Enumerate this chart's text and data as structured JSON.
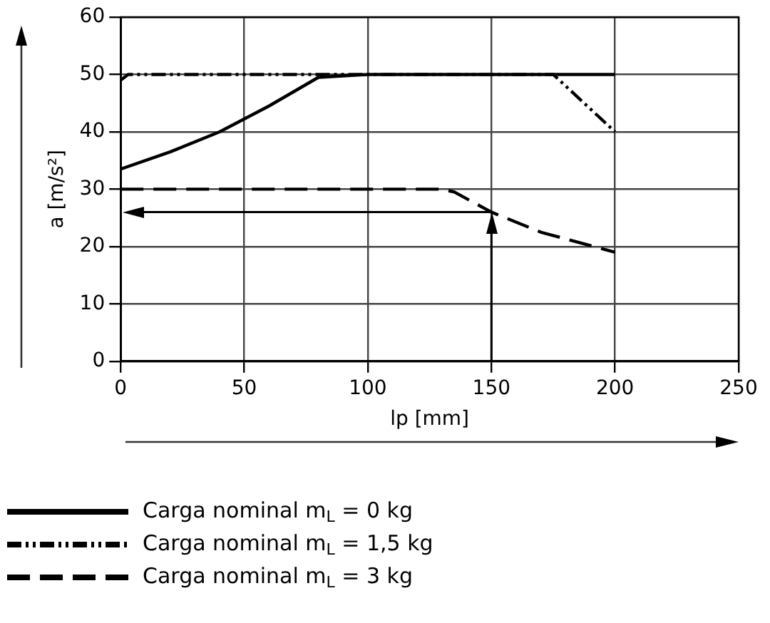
{
  "chart_data": {
    "type": "line",
    "xlabel": "lp [mm]",
    "ylabel": "a [m/s²]",
    "xlim": [
      0,
      250
    ],
    "xticks": [
      0,
      50,
      100,
      150,
      200,
      250
    ],
    "ylim": [
      0,
      60
    ],
    "yticks": [
      0,
      10,
      20,
      30,
      40,
      50,
      60
    ],
    "grid": true,
    "legend": "bottom",
    "marker": "none",
    "series": [
      {
        "name": "Carga nominal m$_{L}$ = 0 kg",
        "color": "#000000",
        "line_style": "solid",
        "x": [
          0,
          20,
          40,
          60,
          80,
          100,
          200
        ],
        "values": [
          33.5,
          36.5,
          40,
          44.5,
          49.5,
          50,
          50
        ]
      },
      {
        "name": "Carga nominal m$_{L}$ = 1,5 kg",
        "color": "#000000",
        "line_style": "dotted",
        "x": [
          0,
          3,
          175,
          200
        ],
        "values": [
          49,
          50,
          50,
          40
        ]
      },
      {
        "name": "Carga nominal m$_{L}$ = 3 kg",
        "color": "#000000",
        "line_style": "dashed",
        "x": [
          0,
          130,
          135,
          150,
          170,
          200
        ],
        "values": [
          30,
          30,
          29.5,
          26,
          22.5,
          19
        ]
      }
    ],
    "ref_lines": [
      {
        "axis": "x",
        "value": 150
      },
      {
        "axis": "y",
        "value": 26
      }
    ]
  }
}
